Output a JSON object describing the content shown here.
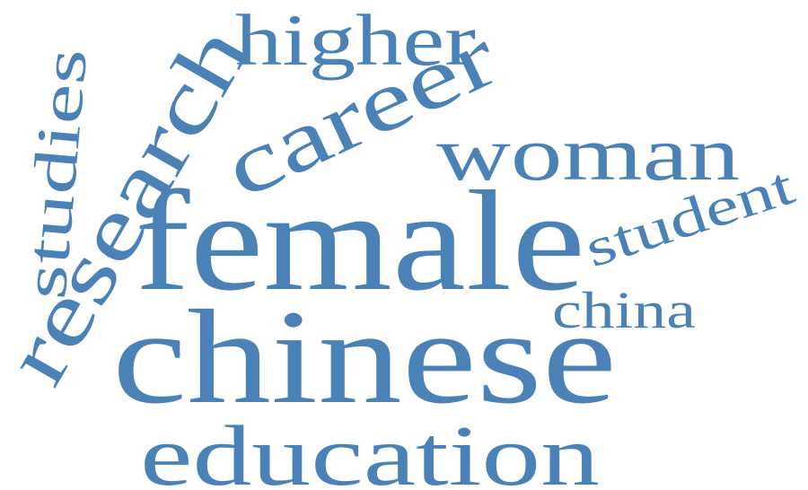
{
  "word_cloud": {
    "color": "#4a82b8",
    "words": {
      "higher": "higher",
      "research": "research",
      "studies": "studies",
      "career": "career",
      "woman": "woman",
      "female": "female",
      "student": "student",
      "china": "china",
      "chinese": "chinese",
      "education": "education"
    }
  }
}
